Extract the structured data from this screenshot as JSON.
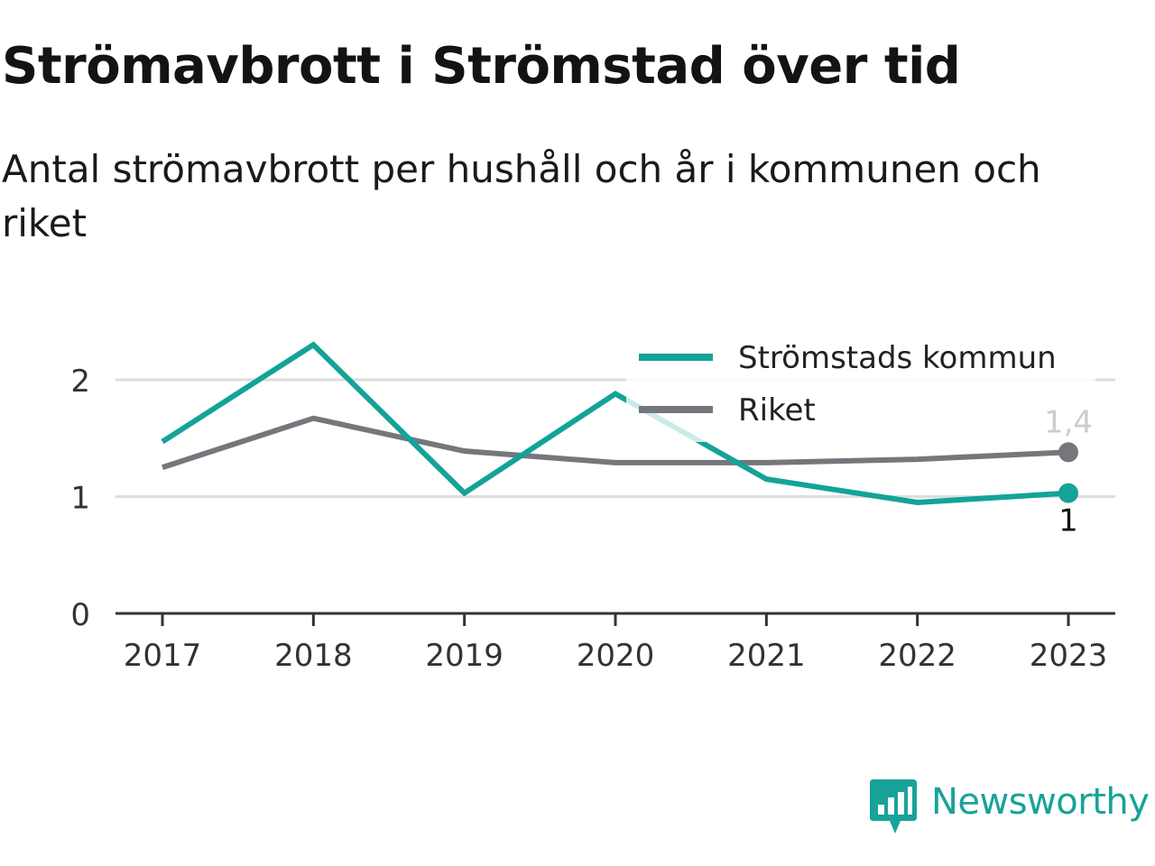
{
  "header": {
    "title": "Strömavbrott i Strömstad över tid",
    "subtitle": "Antal strömavbrott per hushåll och år i kommunen och riket"
  },
  "branding": {
    "logo_text": "Newsworthy",
    "logo_color": "#17a398"
  },
  "colors": {
    "kommun": "#13a398",
    "riket": "#76767d",
    "grid": "#dddddd",
    "axis": "#333333",
    "text": "#333333",
    "end_label_riket": "#cccccc",
    "end_label_kommun": "#111111"
  },
  "chart_data": {
    "type": "line",
    "x": [
      "2017",
      "2018",
      "2019",
      "2020",
      "2021",
      "2022",
      "2023"
    ],
    "series": [
      {
        "name": "Strömstads kommun",
        "color": "#13a398",
        "values": [
          1.47,
          2.3,
          1.03,
          1.88,
          1.15,
          0.95,
          1.03
        ],
        "end_label": "1"
      },
      {
        "name": "Riket",
        "color": "#76767d",
        "values": [
          1.25,
          1.67,
          1.39,
          1.29,
          1.29,
          1.32,
          1.38
        ],
        "end_label": "1,4"
      }
    ],
    "y_ticks": [
      "0",
      "1",
      "2"
    ],
    "ylim": [
      0,
      2.3
    ],
    "grid": true,
    "legend_position": "top-right",
    "xlabel": "",
    "ylabel": ""
  }
}
